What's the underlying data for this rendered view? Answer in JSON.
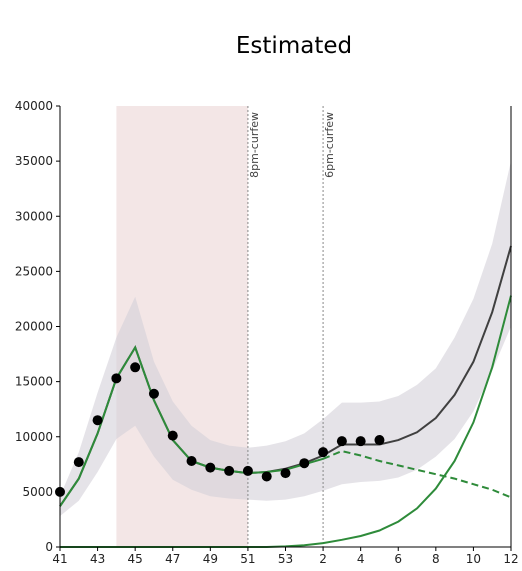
{
  "chart_data": {
    "type": "line",
    "title": "Estimated",
    "xlabel": "",
    "ylabel": "",
    "ylim": [
      0,
      40000
    ],
    "y_ticks": [
      0,
      5000,
      10000,
      15000,
      20000,
      25000,
      30000,
      35000,
      40000
    ],
    "x_ticks": [
      {
        "x": 0,
        "label": "41"
      },
      {
        "x": 2,
        "label": "43"
      },
      {
        "x": 4,
        "label": "45"
      },
      {
        "x": 6,
        "label": "47"
      },
      {
        "x": 8,
        "label": "49"
      },
      {
        "x": 10,
        "label": "51"
      },
      {
        "x": 12,
        "label": "53"
      },
      {
        "x": 14,
        "label": "2"
      },
      {
        "x": 16,
        "label": "4"
      },
      {
        "x": 18,
        "label": "6"
      },
      {
        "x": 20,
        "label": "8"
      },
      {
        "x": 22,
        "label": "10"
      },
      {
        "x": 24,
        "label": "12"
      }
    ],
    "xlim": [
      0,
      24
    ],
    "shaded_period": {
      "from": 3,
      "to": 10,
      "color": "#f3e6e6"
    },
    "annotations": [
      {
        "x": 10,
        "text": "8pm-curfew"
      },
      {
        "x": 14,
        "text": "6pm-curfew"
      }
    ],
    "colors": {
      "fit": "#404040",
      "band": "#d3d1d8",
      "green": "#2e8b3a",
      "points": "#000000"
    },
    "band": {
      "x": [
        0,
        1,
        2,
        3,
        4,
        5,
        6,
        7,
        8,
        9,
        10,
        11,
        12,
        13,
        14,
        15,
        16,
        17,
        18,
        19,
        20,
        21,
        22,
        23,
        24
      ],
      "lower": [
        2800,
        4200,
        6800,
        9800,
        11000,
        8200,
        6100,
        5200,
        4600,
        4400,
        4300,
        4200,
        4300,
        4600,
        5100,
        5700,
        5900,
        6000,
        6300,
        7000,
        8200,
        9800,
        12300,
        16000,
        20000
      ],
      "upper": [
        4600,
        8600,
        14000,
        19000,
        22700,
        16800,
        13200,
        11000,
        9700,
        9200,
        9000,
        9200,
        9600,
        10300,
        11600,
        13100,
        13100,
        13200,
        13700,
        14700,
        16200,
        19000,
        22500,
        27500,
        35000
      ]
    },
    "series": [
      {
        "key": "fit",
        "style": "solid",
        "x": [
          0,
          1,
          2,
          3,
          4,
          5,
          6,
          7,
          8,
          9,
          10,
          11,
          12,
          13,
          14,
          15,
          16,
          17,
          18,
          19,
          20,
          21,
          22,
          23,
          24
        ],
        "y": [
          3700,
          6200,
          10300,
          15300,
          18100,
          13300,
          9700,
          7800,
          7200,
          6900,
          6700,
          6800,
          7100,
          7600,
          8300,
          9300,
          9300,
          9300,
          9700,
          10400,
          11700,
          13800,
          16800,
          21300,
          27300
        ]
      },
      {
        "key": "green_main",
        "style": "solid",
        "x": [
          0,
          1,
          2,
          3,
          4,
          5,
          6,
          7,
          8,
          9,
          10,
          11,
          12,
          13,
          14
        ],
        "y": [
          3700,
          6200,
          10300,
          15300,
          18100,
          13300,
          9700,
          7800,
          7200,
          6900,
          6700,
          6800,
          7000,
          7500,
          8000
        ]
      },
      {
        "key": "green_proj",
        "style": "dashed",
        "x": [
          14,
          15,
          16,
          17,
          18,
          19,
          20,
          21,
          22,
          23,
          24
        ],
        "y": [
          8000,
          8700,
          8300,
          7800,
          7400,
          7000,
          6600,
          6200,
          5700,
          5200,
          4500
        ]
      },
      {
        "key": "green_low",
        "style": "solid",
        "x": [
          0,
          1,
          2,
          3,
          4,
          5,
          6,
          7,
          8,
          9,
          10,
          11,
          12,
          13,
          14,
          15,
          16,
          17,
          18,
          19,
          20,
          21,
          22,
          23,
          24
        ],
        "y": [
          0,
          0,
          0,
          0,
          0,
          0,
          0,
          0,
          0,
          0,
          0,
          0,
          50,
          150,
          350,
          650,
          1000,
          1500,
          2300,
          3500,
          5300,
          7800,
          11300,
          16300,
          22800
        ]
      }
    ],
    "points": {
      "x": [
        0,
        1,
        2,
        3,
        4,
        5,
        6,
        7,
        8,
        9,
        10,
        11,
        12,
        13,
        14,
        15,
        16,
        17
      ],
      "y": [
        5000,
        7700,
        11500,
        15300,
        16300,
        13900,
        10100,
        7800,
        7200,
        6900,
        6900,
        6400,
        6700,
        7600,
        8600,
        9600,
        9600,
        9700
      ]
    }
  }
}
